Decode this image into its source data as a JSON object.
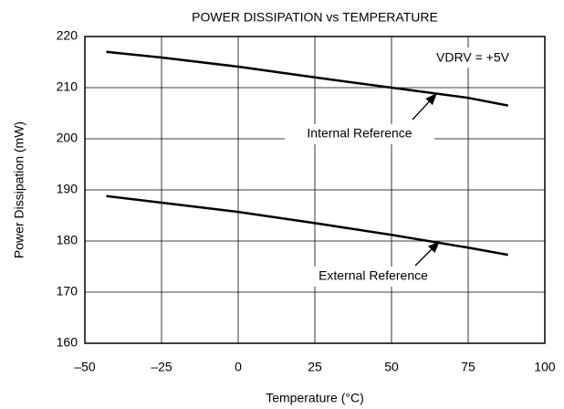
{
  "chart_data": {
    "type": "line",
    "title": "POWER DISSIPATION vs TEMPERATURE",
    "x_label": "Temperature (°C)",
    "y_label": "Power Dissipation (mW)",
    "annotations": [
      "VDRV = +5V"
    ],
    "x": [
      -43,
      -25,
      0,
      25,
      50,
      75,
      88
    ],
    "series": [
      {
        "name": "Internal Reference",
        "color": "#000000",
        "values": [
          217,
          215.9,
          214.1,
          212,
          210,
          208,
          206.5
        ]
      },
      {
        "name": "External Reference",
        "color": "#000000",
        "values": [
          188.8,
          187.5,
          185.7,
          183.5,
          181.2,
          178.7,
          177.3
        ]
      }
    ],
    "xlim": [
      -50,
      100
    ],
    "xticks": [
      {
        "value": -50,
        "label": "–50"
      },
      {
        "value": -25,
        "label": "–25"
      },
      0,
      25,
      50,
      75,
      100
    ],
    "ylim": [
      160,
      220
    ],
    "yticks": [
      160,
      170,
      180,
      190,
      200,
      210,
      220
    ],
    "grid": true
  }
}
